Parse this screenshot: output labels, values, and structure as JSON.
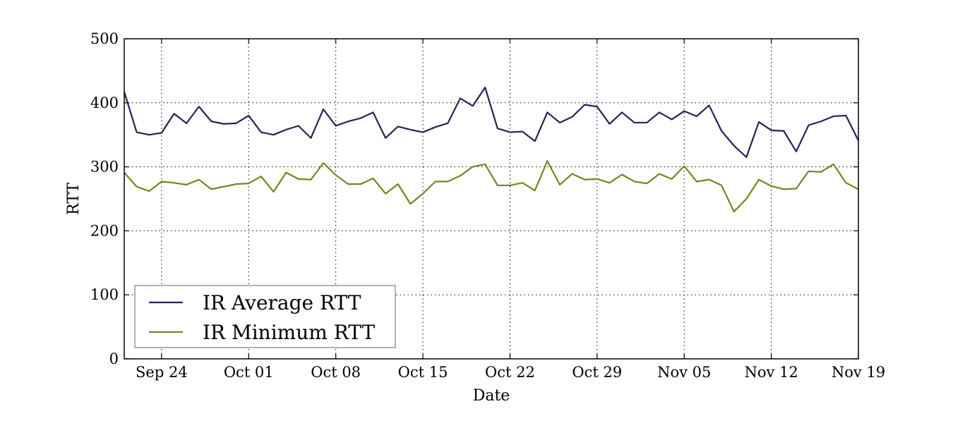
{
  "chart_data": {
    "type": "line",
    "title": "",
    "xlabel": "Date",
    "ylabel": "RTT",
    "ylim": [
      0,
      500
    ],
    "yticks": [
      0,
      100,
      200,
      300,
      400,
      500
    ],
    "xlim": [
      "2014-09-21",
      "2014-11-19"
    ],
    "xticks": [
      {
        "date": "2014-09-24",
        "label": "Sep 24"
      },
      {
        "date": "2014-10-01",
        "label": "Oct 01"
      },
      {
        "date": "2014-10-08",
        "label": "Oct 08"
      },
      {
        "date": "2014-10-15",
        "label": "Oct 15"
      },
      {
        "date": "2014-10-22",
        "label": "Oct 22"
      },
      {
        "date": "2014-10-29",
        "label": "Oct 29"
      },
      {
        "date": "2014-11-05",
        "label": "Nov 05"
      },
      {
        "date": "2014-11-12",
        "label": "Nov 12"
      },
      {
        "date": "2014-11-19",
        "label": "Nov 19"
      }
    ],
    "grid": true,
    "legend_position": "lower-left",
    "x": [
      "2014-09-21",
      "2014-09-22",
      "2014-09-23",
      "2014-09-24",
      "2014-09-25",
      "2014-09-26",
      "2014-09-27",
      "2014-09-28",
      "2014-09-29",
      "2014-09-30",
      "2014-10-01",
      "2014-10-02",
      "2014-10-03",
      "2014-10-04",
      "2014-10-05",
      "2014-10-06",
      "2014-10-07",
      "2014-10-08",
      "2014-10-09",
      "2014-10-10",
      "2014-10-11",
      "2014-10-12",
      "2014-10-13",
      "2014-10-14",
      "2014-10-15",
      "2014-10-16",
      "2014-10-17",
      "2014-10-18",
      "2014-10-19",
      "2014-10-20",
      "2014-10-21",
      "2014-10-22",
      "2014-10-23",
      "2014-10-24",
      "2014-10-25",
      "2014-10-26",
      "2014-10-27",
      "2014-10-28",
      "2014-10-29",
      "2014-10-30",
      "2014-10-31",
      "2014-11-01",
      "2014-11-02",
      "2014-11-03",
      "2014-11-04",
      "2014-11-05",
      "2014-11-06",
      "2014-11-07",
      "2014-11-08",
      "2014-11-09",
      "2014-11-10",
      "2014-11-11",
      "2014-11-12",
      "2014-11-13",
      "2014-11-14",
      "2014-11-15",
      "2014-11-16",
      "2014-11-17",
      "2014-11-18",
      "2014-11-19"
    ],
    "series": [
      {
        "name": "IR Average RTT",
        "color": "#2a2157",
        "values": [
          417,
          354,
          350,
          353,
          383,
          368,
          394,
          371,
          367,
          368,
          380,
          354,
          350,
          358,
          364,
          345,
          390,
          364,
          371,
          376,
          385,
          345,
          363,
          358,
          354,
          362,
          368,
          407,
          395,
          424,
          360,
          354,
          355,
          340,
          385,
          369,
          378,
          397,
          394,
          367,
          385,
          369,
          369,
          385,
          374,
          387,
          379,
          396,
          356,
          333,
          315,
          370,
          357,
          356,
          324,
          365,
          371,
          379,
          380,
          341
        ]
      },
      {
        "name": "IR Minimum RTT",
        "color": "#6b8a22",
        "values": [
          291,
          269,
          262,
          277,
          275,
          272,
          280,
          265,
          269,
          273,
          274,
          285,
          261,
          291,
          281,
          280,
          306,
          287,
          273,
          273,
          282,
          258,
          273,
          242,
          258,
          277,
          277,
          286,
          300,
          304,
          271,
          271,
          275,
          263,
          309,
          272,
          289,
          280,
          281,
          275,
          288,
          277,
          274,
          289,
          281,
          301,
          277,
          280,
          271,
          230,
          250,
          280,
          270,
          265,
          266,
          293,
          292,
          304,
          275,
          265
        ]
      }
    ]
  }
}
